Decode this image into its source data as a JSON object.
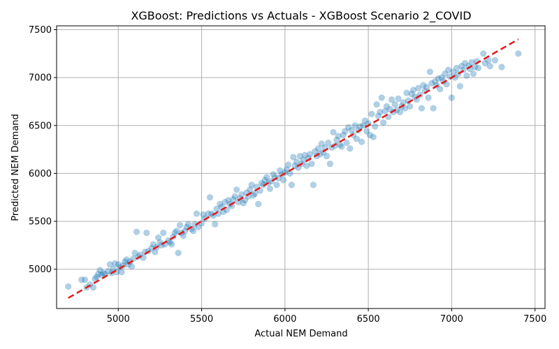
{
  "chart_data": {
    "type": "scatter",
    "title": "XGBoost: Predictions vs Actuals - XGBoost Scenario 2_COVID",
    "xlabel": "Actual NEM Demand",
    "ylabel": "Predicted NEM Demand",
    "xlim": [
      4630,
      7560
    ],
    "ylim": [
      4590,
      7540
    ],
    "xticks": [
      5000,
      5500,
      6000,
      6500,
      7000,
      7500
    ],
    "yticks": [
      5000,
      5500,
      6000,
      6500,
      7000,
      7500
    ],
    "grid": true,
    "colors": {
      "points": "#1f77b4",
      "reference": "#e31a1c"
    },
    "reference_line": {
      "name": "",
      "x": [
        4700,
        7400
      ],
      "y": [
        4700,
        7400
      ]
    },
    "series": [
      {
        "name": "",
        "points": [
          [
            4700,
            4820
          ],
          [
            4780,
            4890
          ],
          [
            4800,
            4890
          ],
          [
            4810,
            4810
          ],
          [
            4830,
            4840
          ],
          [
            4850,
            4810
          ],
          [
            4860,
            4900
          ],
          [
            4870,
            4920
          ],
          [
            4880,
            4950
          ],
          [
            4890,
            4990
          ],
          [
            4900,
            4940
          ],
          [
            4910,
            4960
          ],
          [
            4920,
            4950
          ],
          [
            4940,
            4980
          ],
          [
            4950,
            5050
          ],
          [
            4960,
            4960
          ],
          [
            4970,
            5000
          ],
          [
            4980,
            5060
          ],
          [
            4990,
            4970
          ],
          [
            5000,
            5050
          ],
          [
            5010,
            5020
          ],
          [
            5020,
            4970
          ],
          [
            5030,
            5040
          ],
          [
            5040,
            5080
          ],
          [
            5050,
            5100
          ],
          [
            5060,
            5050
          ],
          [
            5070,
            5080
          ],
          [
            5080,
            5030
          ],
          [
            5090,
            5110
          ],
          [
            5100,
            5170
          ],
          [
            5110,
            5390
          ],
          [
            5120,
            5130
          ],
          [
            5130,
            5150
          ],
          [
            5150,
            5120
          ],
          [
            5160,
            5180
          ],
          [
            5170,
            5380
          ],
          [
            5180,
            5190
          ],
          [
            5200,
            5220
          ],
          [
            5210,
            5260
          ],
          [
            5220,
            5180
          ],
          [
            5230,
            5230
          ],
          [
            5240,
            5330
          ],
          [
            5250,
            5280
          ],
          [
            5260,
            5250
          ],
          [
            5270,
            5380
          ],
          [
            5280,
            5260
          ],
          [
            5300,
            5300
          ],
          [
            5310,
            5280
          ],
          [
            5320,
            5260
          ],
          [
            5330,
            5340
          ],
          [
            5340,
            5380
          ],
          [
            5350,
            5400
          ],
          [
            5360,
            5170
          ],
          [
            5370,
            5460
          ],
          [
            5380,
            5380
          ],
          [
            5390,
            5350
          ],
          [
            5400,
            5400
          ],
          [
            5410,
            5440
          ],
          [
            5420,
            5470
          ],
          [
            5440,
            5420
          ],
          [
            5450,
            5400
          ],
          [
            5460,
            5470
          ],
          [
            5470,
            5580
          ],
          [
            5480,
            5440
          ],
          [
            5500,
            5480
          ],
          [
            5510,
            5570
          ],
          [
            5520,
            5530
          ],
          [
            5540,
            5580
          ],
          [
            5550,
            5750
          ],
          [
            5560,
            5580
          ],
          [
            5570,
            5560
          ],
          [
            5580,
            5470
          ],
          [
            5590,
            5630
          ],
          [
            5600,
            5580
          ],
          [
            5610,
            5680
          ],
          [
            5620,
            5650
          ],
          [
            5630,
            5600
          ],
          [
            5640,
            5700
          ],
          [
            5650,
            5620
          ],
          [
            5660,
            5720
          ],
          [
            5670,
            5680
          ],
          [
            5680,
            5660
          ],
          [
            5690,
            5730
          ],
          [
            5700,
            5760
          ],
          [
            5710,
            5830
          ],
          [
            5720,
            5700
          ],
          [
            5730,
            5740
          ],
          [
            5740,
            5780
          ],
          [
            5750,
            5690
          ],
          [
            5760,
            5720
          ],
          [
            5770,
            5800
          ],
          [
            5780,
            5760
          ],
          [
            5790,
            5830
          ],
          [
            5800,
            5880
          ],
          [
            5810,
            5770
          ],
          [
            5820,
            5790
          ],
          [
            5830,
            5860
          ],
          [
            5840,
            5680
          ],
          [
            5850,
            5820
          ],
          [
            5860,
            5900
          ],
          [
            5870,
            5880
          ],
          [
            5880,
            5930
          ],
          [
            5890,
            5960
          ],
          [
            5900,
            5900
          ],
          [
            5910,
            5840
          ],
          [
            5920,
            5920
          ],
          [
            5930,
            5990
          ],
          [
            5940,
            5960
          ],
          [
            5950,
            5880
          ],
          [
            5960,
            5950
          ],
          [
            5970,
            6030
          ],
          [
            5980,
            5990
          ],
          [
            5990,
            5930
          ],
          [
            6000,
            6010
          ],
          [
            6010,
            6040
          ],
          [
            6020,
            6090
          ],
          [
            6030,
            6000
          ],
          [
            6040,
            5880
          ],
          [
            6050,
            6170
          ],
          [
            6060,
            6080
          ],
          [
            6070,
            6120
          ],
          [
            6080,
            6060
          ],
          [
            6090,
            6180
          ],
          [
            6100,
            6100
          ],
          [
            6110,
            6140
          ],
          [
            6120,
            6190
          ],
          [
            6130,
            6080
          ],
          [
            6140,
            6160
          ],
          [
            6150,
            6200
          ],
          [
            6160,
            6100
          ],
          [
            6170,
            5880
          ],
          [
            6180,
            6230
          ],
          [
            6190,
            6180
          ],
          [
            6200,
            6260
          ],
          [
            6210,
            6200
          ],
          [
            6220,
            6310
          ],
          [
            6230,
            6220
          ],
          [
            6240,
            6270
          ],
          [
            6250,
            6180
          ],
          [
            6260,
            6320
          ],
          [
            6270,
            6100
          ],
          [
            6280,
            6270
          ],
          [
            6290,
            6430
          ],
          [
            6300,
            6290
          ],
          [
            6310,
            6350
          ],
          [
            6320,
            6390
          ],
          [
            6330,
            6300
          ],
          [
            6340,
            6280
          ],
          [
            6350,
            6400
          ],
          [
            6360,
            6440
          ],
          [
            6370,
            6320
          ],
          [
            6380,
            6480
          ],
          [
            6390,
            6260
          ],
          [
            6400,
            6450
          ],
          [
            6410,
            6400
          ],
          [
            6420,
            6500
          ],
          [
            6430,
            6360
          ],
          [
            6440,
            6450
          ],
          [
            6450,
            6490
          ],
          [
            6460,
            6330
          ],
          [
            6470,
            6500
          ],
          [
            6480,
            6550
          ],
          [
            6490,
            6440
          ],
          [
            6500,
            6520
          ],
          [
            6510,
            6400
          ],
          [
            6520,
            6620
          ],
          [
            6530,
            6380
          ],
          [
            6540,
            6490
          ],
          [
            6550,
            6720
          ],
          [
            6560,
            6600
          ],
          [
            6570,
            6640
          ],
          [
            6580,
            6790
          ],
          [
            6590,
            6530
          ],
          [
            6600,
            6650
          ],
          [
            6610,
            6700
          ],
          [
            6620,
            6590
          ],
          [
            6630,
            6670
          ],
          [
            6640,
            6770
          ],
          [
            6650,
            6640
          ],
          [
            6660,
            6720
          ],
          [
            6670,
            6660
          ],
          [
            6680,
            6780
          ],
          [
            6690,
            6640
          ],
          [
            6700,
            6700
          ],
          [
            6710,
            6740
          ],
          [
            6720,
            6680
          ],
          [
            6730,
            6840
          ],
          [
            6740,
            6760
          ],
          [
            6750,
            6700
          ],
          [
            6760,
            6830
          ],
          [
            6770,
            6870
          ],
          [
            6780,
            6800
          ],
          [
            6790,
            6770
          ],
          [
            6800,
            6890
          ],
          [
            6810,
            6820
          ],
          [
            6820,
            6680
          ],
          [
            6830,
            6920
          ],
          [
            6840,
            6860
          ],
          [
            6850,
            6900
          ],
          [
            6860,
            6790
          ],
          [
            6870,
            7060
          ],
          [
            6880,
            6940
          ],
          [
            6890,
            6680
          ],
          [
            6900,
            6960
          ],
          [
            6910,
            6920
          ],
          [
            6920,
            6990
          ],
          [
            6930,
            6880
          ],
          [
            6940,
            7000
          ],
          [
            6950,
            6960
          ],
          [
            6960,
            7040
          ],
          [
            6970,
            6930
          ],
          [
            6980,
            7080
          ],
          [
            6990,
            7010
          ],
          [
            7000,
            6790
          ],
          [
            7010,
            7060
          ],
          [
            7020,
            7000
          ],
          [
            7030,
            7100
          ],
          [
            7040,
            7040
          ],
          [
            7050,
            6910
          ],
          [
            7060,
            7120
          ],
          [
            7070,
            7080
          ],
          [
            7080,
            7150
          ],
          [
            7090,
            7020
          ],
          [
            7100,
            7120
          ],
          [
            7110,
            7090
          ],
          [
            7120,
            7160
          ],
          [
            7130,
            7040
          ],
          [
            7140,
            7110
          ],
          [
            7150,
            7170
          ],
          [
            7160,
            7100
          ],
          [
            7190,
            7250
          ],
          [
            7200,
            7150
          ],
          [
            7220,
            7180
          ],
          [
            7230,
            7120
          ],
          [
            7260,
            7180
          ],
          [
            7300,
            7110
          ],
          [
            7400,
            7250
          ]
        ]
      }
    ]
  }
}
